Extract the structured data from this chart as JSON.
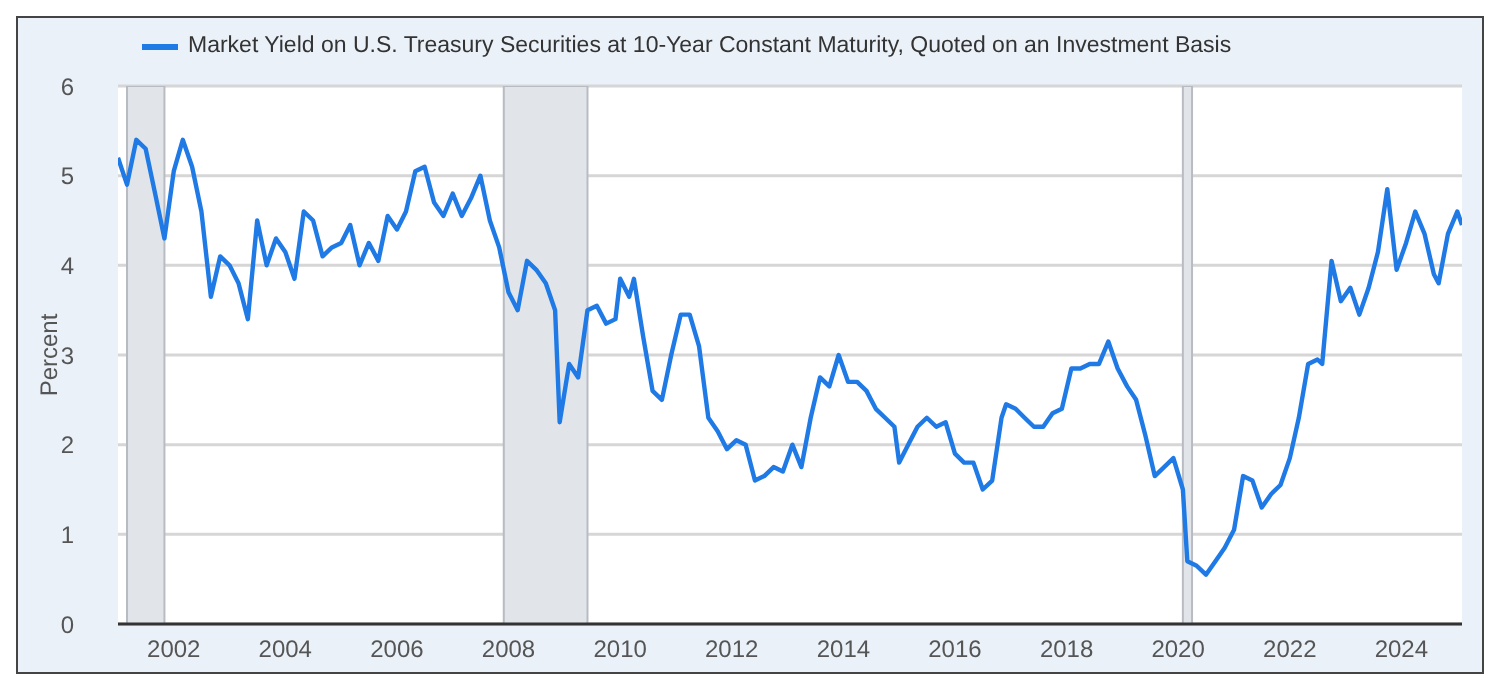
{
  "chart_data": {
    "type": "line",
    "ylabel": "Percent",
    "legend": "top left",
    "grid": "y",
    "marker": "none",
    "line_style": "solid",
    "xlim": [
      "2001-01",
      "2025-02"
    ],
    "xticks": [
      "2002",
      "2004",
      "2006",
      "2008",
      "2010",
      "2012",
      "2014",
      "2016",
      "2018",
      "2020",
      "2022",
      "2024"
    ],
    "ylim": [
      0,
      6
    ],
    "yticks": [
      0,
      1,
      2,
      3,
      4,
      5,
      6
    ],
    "bands": [
      {
        "axis": "x",
        "from": "2001-03",
        "to": "2001-11",
        "color": "#e1e5ea"
      },
      {
        "axis": "x",
        "from": "2007-12",
        "to": "2009-06",
        "color": "#e1e5ea"
      },
      {
        "axis": "x",
        "from": "2020-02",
        "to": "2020-04",
        "color": "#e1e5ea"
      }
    ],
    "x": [
      "2001-01",
      "2001-03",
      "2001-05",
      "2001-07",
      "2001-09",
      "2001-11",
      "2002-01",
      "2002-03",
      "2002-05",
      "2002-07",
      "2002-09",
      "2002-11",
      "2003-01",
      "2003-03",
      "2003-05",
      "2003-07",
      "2003-09",
      "2003-11",
      "2004-01",
      "2004-03",
      "2004-05",
      "2004-07",
      "2004-09",
      "2004-11",
      "2005-01",
      "2005-03",
      "2005-05",
      "2005-07",
      "2005-09",
      "2005-11",
      "2006-01",
      "2006-03",
      "2006-05",
      "2006-07",
      "2006-09",
      "2006-11",
      "2007-01",
      "2007-03",
      "2007-05",
      "2007-07",
      "2007-09",
      "2007-11",
      "2008-01",
      "2008-03",
      "2008-05",
      "2008-07",
      "2008-09",
      "2008-11",
      "2008-12",
      "2009-02",
      "2009-04",
      "2009-06",
      "2009-08",
      "2009-10",
      "2009-12",
      "2010-01",
      "2010-03",
      "2010-04",
      "2010-06",
      "2010-08",
      "2010-10",
      "2010-12",
      "2011-02",
      "2011-04",
      "2011-06",
      "2011-08",
      "2011-10",
      "2011-12",
      "2012-02",
      "2012-04",
      "2012-06",
      "2012-08",
      "2012-10",
      "2012-12",
      "2013-02",
      "2013-04",
      "2013-06",
      "2013-08",
      "2013-10",
      "2013-12",
      "2014-02",
      "2014-04",
      "2014-06",
      "2014-08",
      "2014-10",
      "2014-12",
      "2015-01",
      "2015-03",
      "2015-05",
      "2015-07",
      "2015-09",
      "2015-11",
      "2016-01",
      "2016-03",
      "2016-05",
      "2016-07",
      "2016-09",
      "2016-11",
      "2016-12",
      "2017-02",
      "2017-04",
      "2017-06",
      "2017-08",
      "2017-10",
      "2017-12",
      "2018-02",
      "2018-04",
      "2018-06",
      "2018-08",
      "2018-10",
      "2018-12",
      "2019-02",
      "2019-04",
      "2019-06",
      "2019-08",
      "2019-10",
      "2019-12",
      "2020-02",
      "2020-03",
      "2020-05",
      "2020-07",
      "2020-09",
      "2020-11",
      "2021-01",
      "2021-03",
      "2021-05",
      "2021-07",
      "2021-09",
      "2021-11",
      "2022-01",
      "2022-03",
      "2022-05",
      "2022-07",
      "2022-08",
      "2022-10",
      "2022-12",
      "2023-02",
      "2023-04",
      "2023-06",
      "2023-08",
      "2023-10",
      "2023-12",
      "2024-02",
      "2024-04",
      "2024-06",
      "2024-08",
      "2024-09",
      "2024-11",
      "2025-01",
      "2025-02"
    ],
    "series": [
      {
        "name": "Market Yield on U.S. Treasury Securities at 10-Year Constant Maturity, Quoted on an Investment Basis",
        "color": "#1f7ae6",
        "values": [
          5.2,
          4.9,
          5.4,
          5.3,
          4.8,
          4.3,
          5.05,
          5.4,
          5.1,
          4.6,
          3.65,
          4.1,
          4.0,
          3.8,
          3.4,
          4.5,
          4.0,
          4.3,
          4.15,
          3.85,
          4.6,
          4.5,
          4.1,
          4.2,
          4.25,
          4.45,
          4.0,
          4.25,
          4.05,
          4.55,
          4.4,
          4.6,
          5.05,
          5.1,
          4.7,
          4.55,
          4.8,
          4.55,
          4.75,
          5.0,
          4.5,
          4.2,
          3.7,
          3.5,
          4.05,
          3.95,
          3.8,
          3.5,
          2.25,
          2.9,
          2.75,
          3.5,
          3.55,
          3.35,
          3.4,
          3.85,
          3.65,
          3.85,
          3.2,
          2.6,
          2.5,
          3.0,
          3.45,
          3.45,
          3.1,
          2.3,
          2.15,
          1.95,
          2.05,
          2.0,
          1.6,
          1.65,
          1.75,
          1.7,
          2.0,
          1.75,
          2.3,
          2.75,
          2.65,
          3.0,
          2.7,
          2.7,
          2.6,
          2.4,
          2.3,
          2.2,
          1.8,
          2.0,
          2.2,
          2.3,
          2.2,
          2.25,
          1.9,
          1.8,
          1.8,
          1.5,
          1.6,
          2.3,
          2.45,
          2.4,
          2.3,
          2.2,
          2.2,
          2.35,
          2.4,
          2.85,
          2.85,
          2.9,
          2.9,
          3.15,
          2.85,
          2.65,
          2.5,
          2.1,
          1.65,
          1.75,
          1.85,
          1.5,
          0.7,
          0.65,
          0.55,
          0.7,
          0.85,
          1.05,
          1.65,
          1.6,
          1.3,
          1.45,
          1.55,
          1.85,
          2.3,
          2.9,
          2.95,
          2.9,
          4.05,
          3.6,
          3.75,
          3.45,
          3.75,
          4.15,
          4.85,
          3.95,
          4.25,
          4.6,
          4.35,
          3.9,
          3.8,
          4.35,
          4.6,
          4.45
        ]
      }
    ]
  }
}
